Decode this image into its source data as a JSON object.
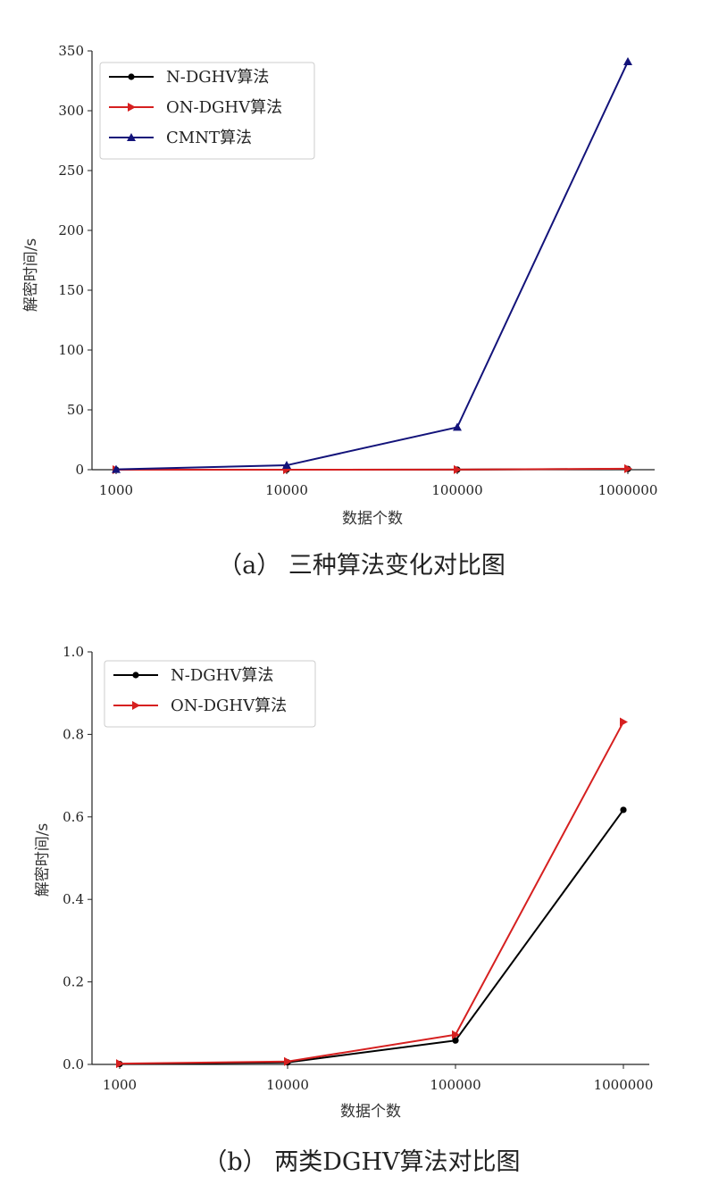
{
  "chart_data": [
    {
      "type": "line",
      "caption": "（a） 三种算法变化对比图",
      "xlabel": "数据个数",
      "ylabel": "解密时间/s",
      "categories": [
        "1000",
        "10000",
        "100000",
        "1000000"
      ],
      "ylim": [
        0,
        350
      ],
      "yticks": [
        "0",
        "50",
        "100",
        "150",
        "200",
        "250",
        "300",
        "350"
      ],
      "grid": false,
      "legend_position": "top-left",
      "series": [
        {
          "name": "N-DGHV算法",
          "values": [
            0.0,
            0.004,
            0.058,
            0.617
          ],
          "color": "#000000",
          "marker": "circle"
        },
        {
          "name": "ON-DGHV算法",
          "values": [
            0.0,
            0.006,
            0.072,
            0.83
          ],
          "color": "#d62020",
          "marker": "triangle-right"
        },
        {
          "name": "CMNT算法",
          "values": [
            0.3,
            3.7,
            35.5,
            341
          ],
          "color": "#13137a",
          "marker": "triangle-up"
        }
      ]
    },
    {
      "type": "line",
      "caption": "（b） 两类DGHV算法对比图",
      "xlabel": "数据个数",
      "ylabel": "解密时间/s",
      "categories": [
        "1000",
        "10000",
        "100000",
        "1000000"
      ],
      "ylim": [
        0,
        1.0
      ],
      "yticks": [
        "0.0",
        "0.2",
        "0.4",
        "0.6",
        "0.8",
        "1.0"
      ],
      "grid": false,
      "legend_position": "top-left",
      "series": [
        {
          "name": "N-DGHV算法",
          "values": [
            0.001,
            0.005,
            0.058,
            0.617
          ],
          "color": "#000000",
          "marker": "circle"
        },
        {
          "name": "ON-DGHV算法",
          "values": [
            0.002,
            0.007,
            0.072,
            0.83
          ],
          "color": "#d62020",
          "marker": "triangle-right"
        }
      ]
    }
  ]
}
